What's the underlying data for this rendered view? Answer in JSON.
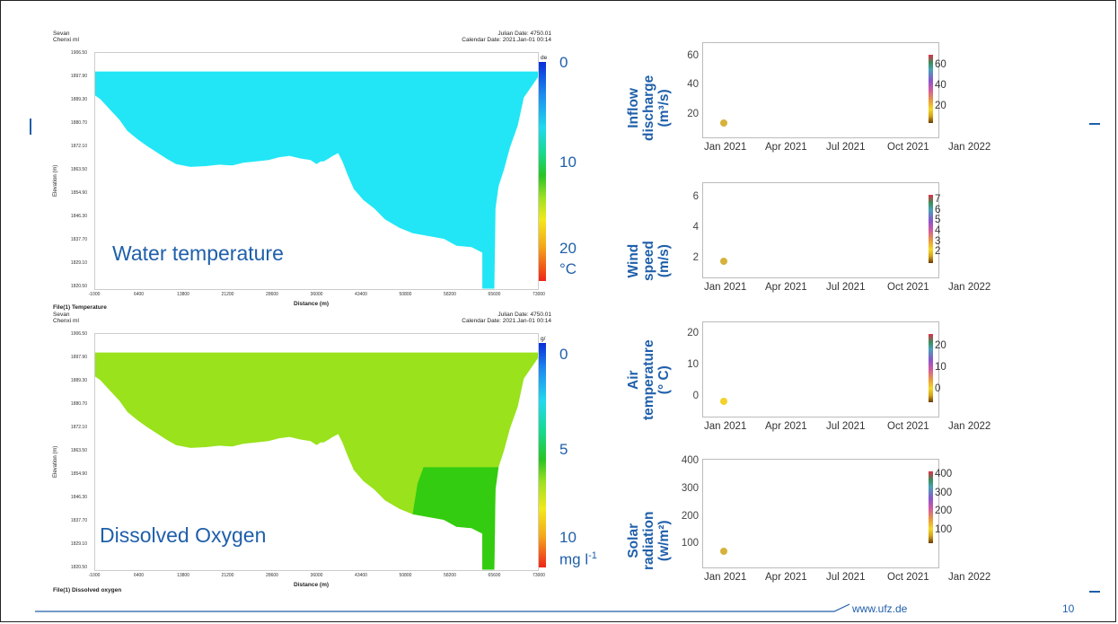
{
  "left_panels": [
    {
      "station": "Sevan",
      "run": "Chenxi ml",
      "julian": "Julian Date: 4750.01",
      "calendar": "Calendar Date: 2021.Jan-01 00:14",
      "file_label": "File(1) Temperature",
      "overlay_label": "Water temperature",
      "cb_unit_top": "de",
      "cb_ticks": [
        "0",
        "10",
        "20"
      ],
      "cb_unit": "°C",
      "fill_color": "#22e6f5",
      "yticks": [
        "1906.50",
        "1897.90",
        "1889.30",
        "1880.70",
        "1872.10",
        "1863.50",
        "1854.90",
        "1846.30",
        "1837.70",
        "1829.10",
        "1820.50"
      ],
      "xticks": [
        "-1000",
        "6400",
        "13800",
        "21200",
        "28600",
        "36000",
        "43400",
        "50800",
        "58200",
        "65600",
        "73000"
      ],
      "ylabel": "Elevation (m)",
      "xlabel": "Distance (m)"
    },
    {
      "station": "Sevan",
      "run": "Chenxi ml",
      "julian": "Julian Date: 4750.01",
      "calendar": "Calendar Date: 2021.Jan-01 00:14",
      "file_label": "File(1) Dissolved oxygen",
      "overlay_label": "Dissolved Oxygen",
      "cb_unit_top": "g/",
      "cb_ticks": [
        "0",
        "5",
        "10"
      ],
      "cb_unit": "mg l",
      "cb_unit_sup": "-1",
      "fill_color": "#99e21c",
      "low_color": "#33cc11",
      "yticks": [
        "1906.50",
        "1897.90",
        "1889.30",
        "1880.70",
        "1872.10",
        "1863.50",
        "1854.90",
        "1846.30",
        "1837.70",
        "1829.10",
        "1820.50"
      ],
      "xticks": [
        "-1000",
        "6400",
        "13800",
        "21200",
        "28600",
        "36000",
        "43400",
        "50800",
        "58200",
        "65600",
        "73000"
      ],
      "ylabel": "Elevation (m)",
      "xlabel": "Distance (m)"
    }
  ],
  "right_panels": [
    {
      "label_lines": [
        "Inflow",
        "discharge",
        "(m³/s)"
      ],
      "yticks": [
        "20",
        "40",
        "60"
      ],
      "cb_ticks": [
        "20",
        "40",
        "60"
      ]
    },
    {
      "label_lines": [
        "Wind",
        "speed",
        "(m/s)"
      ],
      "yticks": [
        "2",
        "4",
        "6"
      ],
      "cb_ticks": [
        "2",
        "3",
        "4",
        "5",
        "6",
        "7"
      ]
    },
    {
      "label_lines": [
        "Air",
        "temperature",
        "(° C)"
      ],
      "yticks": [
        "0",
        "10",
        "20"
      ],
      "cb_ticks": [
        "0",
        "10",
        "20"
      ]
    },
    {
      "label_lines": [
        "Solar",
        "radiation",
        "(w/m²)"
      ],
      "yticks": [
        "100",
        "200",
        "300",
        "400"
      ],
      "cb_ticks": [
        "100",
        "200",
        "300",
        "400"
      ]
    }
  ],
  "x_dates": [
    "Jan 2021",
    "Apr 2021",
    "Jul 2021",
    "Oct 2021",
    "Jan 2022"
  ],
  "footer": {
    "url": "www.ufz.de",
    "page": "10"
  },
  "chart_data": [
    {
      "type": "heatmap",
      "title": "Water temperature",
      "xlabel": "Distance (m)",
      "ylabel": "Elevation (m)",
      "xlim": [
        -1000,
        73000
      ],
      "ylim": [
        1820.5,
        1906.5
      ],
      "unit": "°C",
      "colorbar_range": [
        0,
        25
      ],
      "value": 4
    },
    {
      "type": "heatmap",
      "title": "Dissolved Oxygen",
      "xlabel": "Distance (m)",
      "ylabel": "Elevation (m)",
      "xlim": [
        -1000,
        73000
      ],
      "ylim": [
        1820.5,
        1906.5
      ],
      "unit": "mg l-1",
      "colorbar_range": [
        0,
        12
      ],
      "value": 6.5
    },
    {
      "type": "scatter",
      "ylabel": "Inflow discharge (m³/s)",
      "x": [
        "2021-01-01"
      ],
      "y": [
        14
      ],
      "ylim": [
        5,
        70
      ],
      "xlim": [
        "2020-12-20",
        "2022-01-05"
      ],
      "colorbar_range": [
        5,
        70
      ]
    },
    {
      "type": "scatter",
      "ylabel": "Wind speed (m/s)",
      "x": [
        "2021-01-01"
      ],
      "y": [
        1.8
      ],
      "ylim": [
        0.8,
        7
      ],
      "xlim": [
        "2020-12-20",
        "2022-01-05"
      ],
      "colorbar_range": [
        1,
        7.5
      ]
    },
    {
      "type": "scatter",
      "ylabel": "Air temperature (° C)",
      "x": [
        "2021-01-01"
      ],
      "y": [
        -1.5
      ],
      "ylim": [
        -6,
        24
      ],
      "xlim": [
        "2020-12-20",
        "2022-01-05"
      ],
      "colorbar_range": [
        -6,
        26
      ]
    },
    {
      "type": "scatter",
      "ylabel": "Solar radiation (w/m²)",
      "x": [
        "2021-01-01"
      ],
      "y": [
        75
      ],
      "ylim": [
        20,
        410
      ],
      "xlim": [
        "2020-12-20",
        "2022-01-05"
      ],
      "colorbar_range": [
        30,
        420
      ]
    }
  ]
}
